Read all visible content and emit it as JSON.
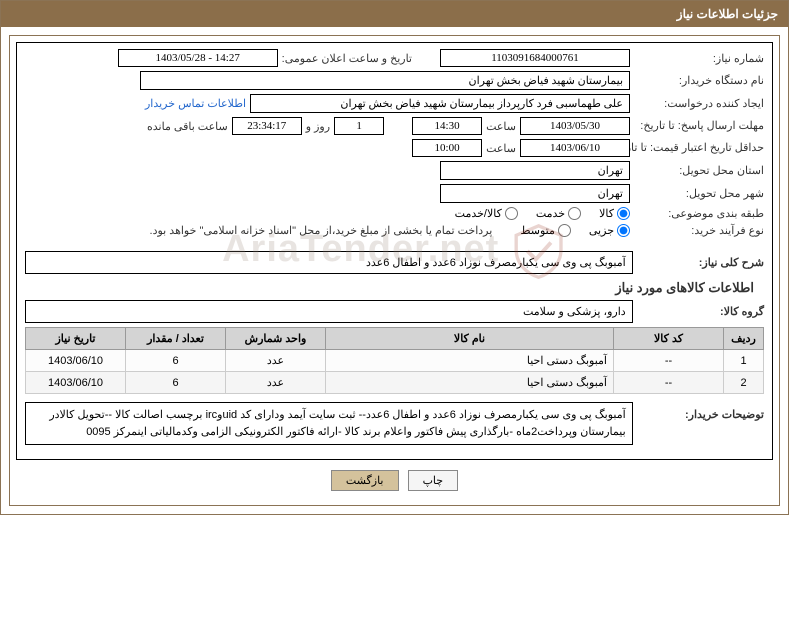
{
  "header": {
    "title": "جزئیات اطلاعات نیاز"
  },
  "fields": {
    "need_no_label": "شماره نیاز:",
    "need_no": "1103091684000761",
    "announce_label": "تاریخ و ساعت اعلان عمومی:",
    "announce_value": "1403/05/28 - 14:27",
    "buyer_org_label": "نام دستگاه خریدار:",
    "buyer_org": "بیمارستان شهید فیاض بخش تهران",
    "requester_label": "ایجاد کننده درخواست:",
    "requester": "علی طهماسبی فرد کارپرداز بیمارستان شهید فیاض بخش تهران",
    "contact_link": "اطلاعات تماس خریدار",
    "deadline_label": "مهلت ارسال پاسخ: تا تاریخ:",
    "deadline_date": "1403/05/30",
    "time_label": "ساعت",
    "deadline_time": "14:30",
    "days_val": "1",
    "days_and": "روز و",
    "countdown": "23:34:17",
    "remaining_label": "ساعت باقی مانده",
    "validity_label": "حداقل تاریخ اعتبار قیمت: تا تاریخ:",
    "validity_date": "1403/06/10",
    "validity_time": "10:00",
    "deliver_province_label": "استان محل تحویل:",
    "deliver_province": "تهران",
    "deliver_city_label": "شهر محل تحویل:",
    "deliver_city": "تهران",
    "subject_class_label": "طبقه بندی موضوعی:",
    "process_type_label": "نوع فرآیند خرید:",
    "payment_note": "پرداخت تمام یا بخشی از مبلغ خرید،از محل \"اسناد خزانه اسلامی\" خواهد بود.",
    "general_desc_label": "شرح کلی نیاز:",
    "general_desc": "آمبوبگ پی وی سی یکبارمصرف نوزاد 6عدد و اطفال 6عدد",
    "goods_group_label": "گروه کالا:",
    "goods_group": "دارو، پزشکی و سلامت",
    "buyer_note_label": "توضیحات خریدار:",
    "buyer_note": "آمبوبگ پی وی سی یکبارمصرف نوزاد 6عدد و اطفال 6عدد-- ثبت سایت آیمد ودارای کد uidوirc برچسب اصالت کالا --تحویل کالادر بیمارستان وپرداخت2ماه -بارگذاری پیش فاکتور واعلام برند کالا -ارائه فاکتور الکترونیکی الزامی وکدمالیاتی اینمرکز 0095"
  },
  "radios": {
    "subject": {
      "opt1": "کالا",
      "opt2": "خدمت",
      "opt3": "کالا/خدمت",
      "selected": 0
    },
    "process": {
      "opt1": "جزیی",
      "opt2": "متوسط",
      "selected": 0
    }
  },
  "items_section_title": "اطلاعات کالاهای مورد نیاز",
  "table": {
    "headers": {
      "row": "ردیف",
      "code": "کد کالا",
      "name": "نام کالا",
      "unit": "واحد شمارش",
      "qty": "تعداد / مقدار",
      "date": "تاریخ نیاز"
    },
    "rows": [
      {
        "n": "1",
        "code": "--",
        "name": "آمبوبگ دستی احیا",
        "unit": "عدد",
        "qty": "6",
        "date": "1403/06/10"
      },
      {
        "n": "2",
        "code": "--",
        "name": "آمبوبگ دستی احیا",
        "unit": "عدد",
        "qty": "6",
        "date": "1403/06/10"
      }
    ]
  },
  "buttons": {
    "back": "بازگشت",
    "print": "چاپ"
  },
  "watermark": "AriaTender.net",
  "colors": {
    "header_bg": "#8b6e4a",
    "border": "#8b7355",
    "th_bg": "#d4d4d4",
    "btn_back": "#d4c29c"
  }
}
